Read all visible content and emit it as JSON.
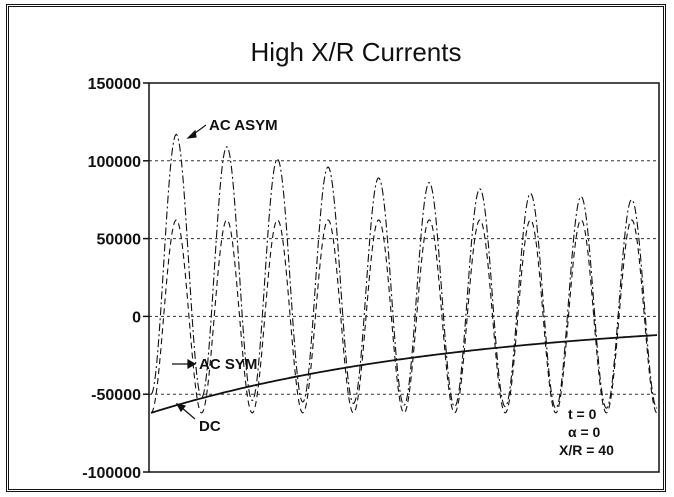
{
  "chart_data": {
    "type": "line",
    "title": "High X/R Currents",
    "xlabel": "",
    "ylabel": "",
    "ylim": [
      -100000,
      150000
    ],
    "y_ticks": [
      "150000",
      "100000",
      "50000",
      "0",
      "-50000",
      "-100000"
    ],
    "grid": "horizontal dashed",
    "series": [
      {
        "name": "AC ASYM",
        "style": "dash-dot",
        "color": "#111111",
        "peaks": [
          117000,
          109000,
          101000,
          96000,
          89000,
          86000,
          82000,
          79000,
          77000,
          75000
        ],
        "troughs": [
          -50000,
          -52000,
          -54000,
          -55000,
          -56000,
          -57000,
          -58000,
          -58000,
          -59000,
          -59000
        ]
      },
      {
        "name": "AC SYM",
        "style": "dashed",
        "color": "#111111",
        "amplitude": 62000,
        "cycles": 10
      },
      {
        "name": "DC",
        "style": "solid",
        "color": "#111111",
        "start": -62000,
        "end": -12000
      }
    ],
    "annotations": {
      "t": "t  =  0",
      "alpha": "α  =  0",
      "xr": "X/R = 40"
    }
  }
}
